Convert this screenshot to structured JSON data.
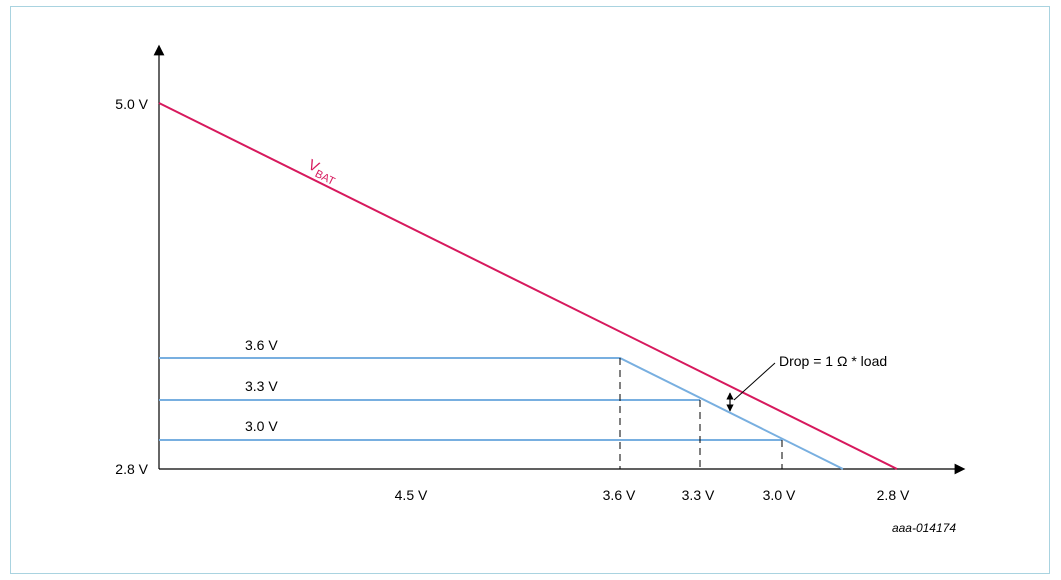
{
  "y_axis_labels": {
    "top": "5.0 V",
    "bottom": "2.8 V"
  },
  "x_axis_labels": [
    "4.5 V",
    "3.6 V",
    "3.3 V",
    "3.0 V",
    "2.8 V"
  ],
  "vbat_label": {
    "main": "V",
    "sub": "BAT"
  },
  "regulated_levels": [
    "3.6 V",
    "3.3 V",
    "3.0 V"
  ],
  "annotation": "Drop = 1 Ω * load",
  "figure_id": "aaa-014174",
  "colors": {
    "vbat": "#d7195d",
    "regulated": "#78afe0",
    "frame": "#a9d3e0",
    "axis": "#000000"
  }
}
